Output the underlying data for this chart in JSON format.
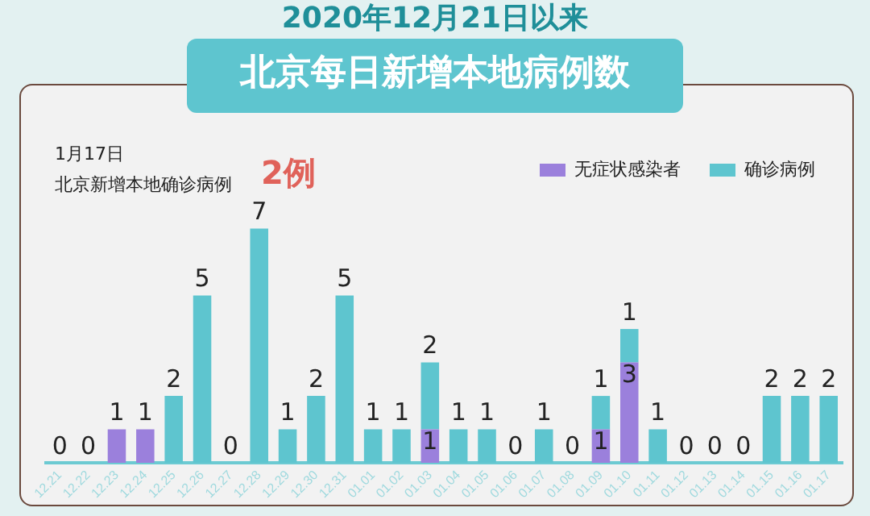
{
  "chart_data": {
    "type": "bar",
    "title": "2020年12月21日以来",
    "subtitle": "北京每日新增本地病例数",
    "annotations": [
      "1月17日",
      "北京新增本地确诊病例",
      "2例"
    ],
    "categories": [
      "12.21",
      "12.22",
      "12.23",
      "12.24",
      "12.25",
      "12.26",
      "12.27",
      "12.28",
      "12.29",
      "12.30",
      "12.31",
      "01.01",
      "01.02",
      "01.03",
      "01.04",
      "01.05",
      "01.06",
      "01.07",
      "01.08",
      "01.09",
      "01.10",
      "01.11",
      "01.12",
      "01.13",
      "01.14",
      "01.15",
      "01.16",
      "01.17"
    ],
    "stacked": true,
    "legend": "top right",
    "grid": false,
    "tick_labels": "x",
    "series": [
      {
        "name": "无症状感染者",
        "color": "#9b80dc",
        "values": [
          0,
          0,
          1,
          1,
          0,
          0,
          0,
          0,
          0,
          0,
          0,
          0,
          0,
          1,
          0,
          0,
          0,
          0,
          0,
          1,
          3,
          0,
          0,
          0,
          0,
          0,
          0,
          0
        ],
        "value_labels": [
          null,
          null,
          "1",
          "1",
          null,
          null,
          null,
          null,
          null,
          null,
          null,
          null,
          null,
          "1",
          null,
          null,
          null,
          null,
          null,
          "1",
          "3",
          null,
          null,
          null,
          null,
          null,
          null,
          null
        ]
      },
      {
        "name": "确诊病例",
        "color": "#5ec5cf",
        "values": [
          0,
          0,
          0,
          0,
          2,
          5,
          0,
          7,
          1,
          2,
          5,
          1,
          1,
          2,
          1,
          1,
          0,
          1,
          0,
          1,
          1,
          1,
          0,
          0,
          0,
          2,
          2,
          2
        ],
        "value_labels": [
          "0",
          "0",
          null,
          null,
          "2",
          "5",
          "0",
          "7",
          "1",
          "2",
          "5",
          "1",
          "1",
          "2",
          "1",
          "1",
          "0",
          "1",
          "0",
          "1",
          "1",
          "1",
          "0",
          "0",
          "0",
          "2",
          "2",
          "2"
        ]
      }
    ]
  }
}
